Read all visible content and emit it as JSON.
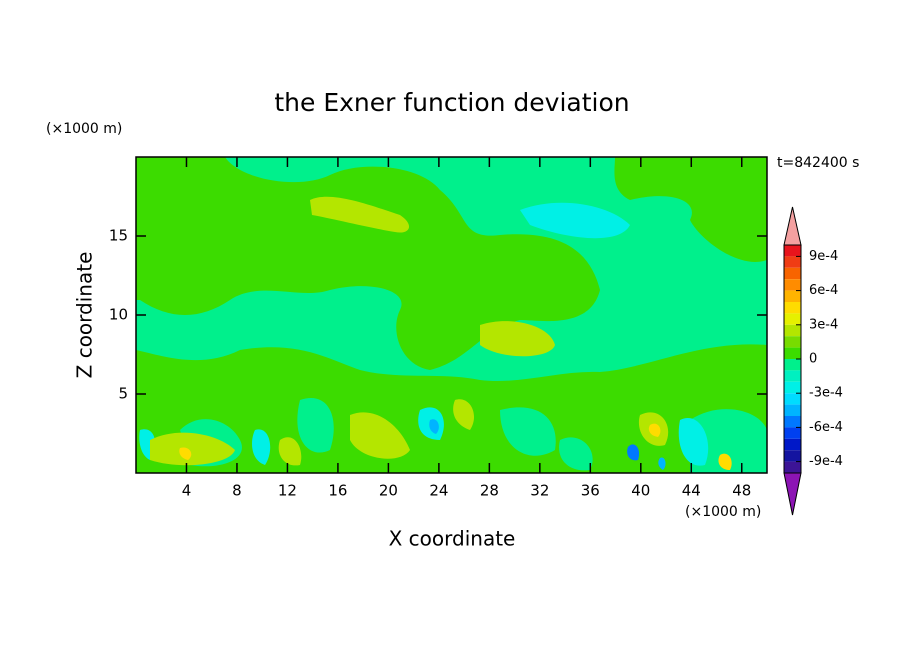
{
  "chart_data": {
    "type": "contour",
    "title": "the Exner function deviation",
    "x_label": "X coordinate",
    "y_label": "Z coordinate",
    "x_unit": "(×1000 m)",
    "y_unit": "(×1000 m)",
    "annotation": "t=842400 s",
    "xlim": [
      0,
      50
    ],
    "xticks": [
      4,
      8,
      12,
      16,
      20,
      24,
      28,
      32,
      36,
      40,
      44,
      48
    ],
    "ylim": [
      0,
      20
    ],
    "yticks": [
      5,
      10,
      15
    ],
    "colorbar": {
      "lim": [
        -0.001,
        0.001
      ],
      "ticks": [
        {
          "value": 0.0009,
          "label": "9e-4"
        },
        {
          "value": 0.0006,
          "label": "6e-4"
        },
        {
          "value": 0.0003,
          "label": "3e-4"
        },
        0,
        {
          "value": -0.0003,
          "label": "-3e-4"
        },
        {
          "value": -0.0006,
          "label": "-6e-4"
        },
        {
          "value": -0.0009,
          "label": "-9e-4"
        }
      ],
      "colors": [
        "#e8141c",
        "#f03c14",
        "#f86400",
        "#ff8c00",
        "#ffb400",
        "#ffdc00",
        "#e6f000",
        "#b4e600",
        "#78dc00",
        "#3cdc00",
        "#00f08c",
        "#00f0c0",
        "#00f0e6",
        "#00dcff",
        "#00b4ff",
        "#0078ff",
        "#0040f0",
        "#0018c8",
        "#1414a0",
        "#3c1496"
      ],
      "over_color": "#f4a0a0",
      "under_color": "#8c14b4"
    }
  }
}
